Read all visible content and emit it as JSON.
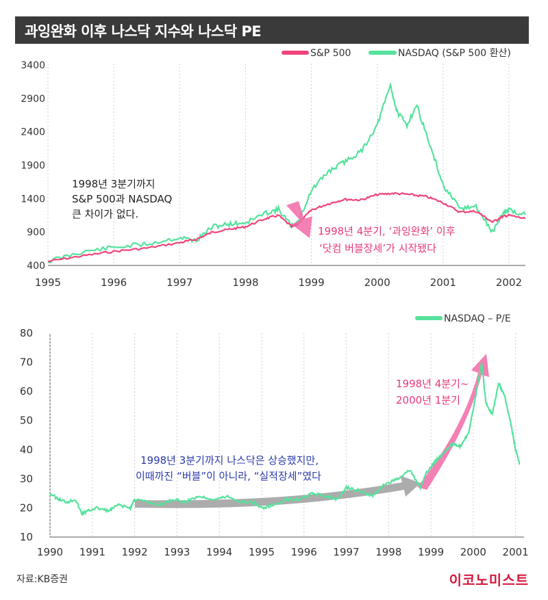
{
  "title": "과잉완화 이후 나스닥 지수와 나스닥 PE",
  "colors": {
    "sp500": "#f0457a",
    "nasdaq": "#55e29c",
    "pink_arrow": "#f26aa7",
    "gray_arrow": "#9e9e9e",
    "blue_text": "#2a3aa8",
    "pink_text": "#e8387c",
    "brand": "#d6173d"
  },
  "chart_data": [
    {
      "type": "line",
      "title": "",
      "legend": [
        "S&P 500",
        "NASDAQ (S&P 500 환산)"
      ],
      "legend_position": "top-right",
      "x_ticks": [
        "1995",
        "1996",
        "1997",
        "1998",
        "1999",
        "2000",
        "2001",
        "2002"
      ],
      "y_ticks": [
        "3400",
        "2900",
        "2400",
        "1900",
        "1400",
        "900",
        "400"
      ],
      "ylim": [
        400,
        3400
      ],
      "xlim": [
        1995.0,
        2002.25
      ],
      "grid": "vertical",
      "series": [
        {
          "name": "S&P 500",
          "x": [
            1995.0,
            1995.5,
            1996.0,
            1996.5,
            1997.0,
            1997.25,
            1997.5,
            1997.75,
            1998.0,
            1998.3,
            1998.5,
            1998.7,
            1998.8,
            1999.0,
            1999.25,
            1999.5,
            1999.75,
            2000.0,
            2000.25,
            2000.5,
            2000.75,
            2001.0,
            2001.25,
            2001.5,
            2001.75,
            2001.9,
            2002.0,
            2002.25
          ],
          "y": [
            460,
            540,
            610,
            660,
            740,
            790,
            900,
            940,
            980,
            1100,
            1150,
            980,
            1020,
            1230,
            1320,
            1390,
            1380,
            1460,
            1480,
            1460,
            1430,
            1340,
            1200,
            1210,
            1050,
            1130,
            1150,
            1100
          ]
        },
        {
          "name": "NASDAQ (S&P 500 환산)",
          "x": [
            1995.0,
            1995.5,
            1996.0,
            1996.5,
            1997.0,
            1997.25,
            1997.5,
            1997.75,
            1998.0,
            1998.3,
            1998.5,
            1998.7,
            1998.8,
            1999.0,
            1999.25,
            1999.5,
            1999.75,
            2000.0,
            2000.2,
            2000.3,
            2000.45,
            2000.6,
            2000.8,
            2001.0,
            2001.25,
            2001.5,
            2001.75,
            2001.9,
            2002.0,
            2002.25
          ],
          "y": [
            460,
            600,
            670,
            720,
            820,
            770,
            980,
            1020,
            1040,
            1180,
            1240,
            990,
            1050,
            1520,
            1800,
            1950,
            2100,
            2500,
            3100,
            2700,
            2500,
            2800,
            2200,
            1600,
            1250,
            1280,
            900,
            1170,
            1230,
            1160
          ]
        }
      ],
      "annotations": [
        {
          "lines": [
            "1998년 3분기까지",
            "S&P 500과 NASDAQ",
            "큰 차이가 없다."
          ]
        },
        {
          "lines": [
            "1998년 4분기, ‘과잉완화’ 이후",
            "‘닷컴 버블장세’가 시작됐다"
          ]
        }
      ]
    },
    {
      "type": "line",
      "title": "",
      "legend": [
        "NASDAQ – P/E"
      ],
      "legend_position": "top-right",
      "x_ticks": [
        "1990",
        "1991",
        "1992",
        "1993",
        "1994",
        "1995",
        "1996",
        "1997",
        "1998",
        "1999",
        "2000",
        "2001"
      ],
      "y_ticks": [
        "80",
        "70",
        "60",
        "50",
        "40",
        "30",
        "20",
        "10"
      ],
      "ylim": [
        10,
        80
      ],
      "xlim": [
        1990.0,
        2001.2
      ],
      "grid": "vertical",
      "series": [
        {
          "name": "NASDAQ – P/E",
          "x": [
            1990.0,
            1990.2,
            1990.4,
            1990.6,
            1990.75,
            1990.9,
            1991.1,
            1991.4,
            1991.6,
            1991.9,
            1992.0,
            1992.3,
            1992.6,
            1992.9,
            1993.2,
            1993.5,
            1993.9,
            1994.2,
            1994.5,
            1994.8,
            1995.0,
            1995.3,
            1995.6,
            1995.9,
            1996.2,
            1996.5,
            1996.8,
            1997.0,
            1997.3,
            1997.6,
            1997.9,
            1998.2,
            1998.5,
            1998.75,
            1998.9,
            1999.1,
            1999.3,
            1999.5,
            1999.7,
            1999.9,
            2000.05,
            2000.2,
            2000.3,
            2000.45,
            2000.6,
            2000.75,
            2000.9,
            2001.0,
            2001.1
          ],
          "y": [
            25,
            23,
            22,
            23,
            18,
            19,
            20,
            19,
            21,
            20,
            23,
            22,
            21,
            23,
            22,
            24,
            23,
            24,
            22,
            22,
            20,
            21,
            23,
            23,
            25,
            24,
            23,
            27,
            26,
            24,
            28,
            30,
            33,
            27,
            32,
            36,
            39,
            42,
            41,
            46,
            58,
            70,
            56,
            52,
            63,
            58,
            48,
            40,
            35
          ]
        }
      ],
      "annotations": [
        {
          "lines": [
            "1998년 3분기까지 나스닥은 상승했지만,",
            "이때까진 “버블”이 아니라, “실적장세”였다"
          ]
        },
        {
          "lines": [
            "1998년 4분기~",
            "2000년 1분기"
          ]
        }
      ]
    }
  ],
  "source": "자료:KB증권",
  "brand": "이코노미스트"
}
